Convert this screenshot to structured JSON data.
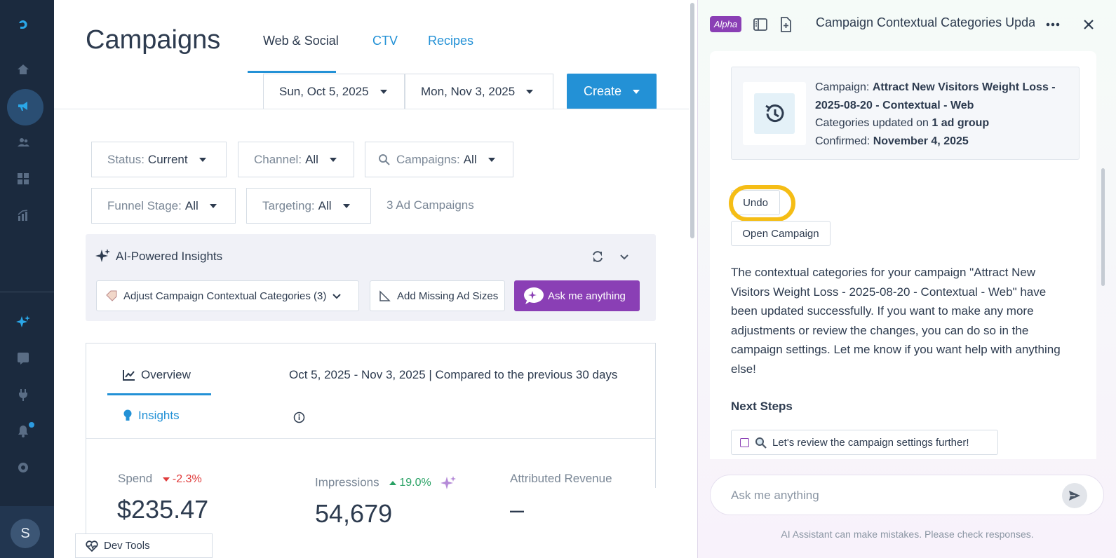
{
  "sidebar": {
    "avatar_initial": "S",
    "icons": [
      "logo-icon",
      "home-icon",
      "megaphone-icon",
      "audience-icon",
      "grid-icon",
      "chart-icon",
      "sparkle-icon",
      "help-icon",
      "plug-icon",
      "bell-icon",
      "gear-icon"
    ]
  },
  "header": {
    "title": "Campaigns",
    "tabs": [
      {
        "label": "Web & Social"
      },
      {
        "label": "CTV"
      },
      {
        "label": "Recipes"
      }
    ],
    "start_date": "Sun, Oct 5, 2025",
    "end_date": "Mon, Nov 3, 2025",
    "create_label": "Create"
  },
  "filters": {
    "status": {
      "label": "Status:",
      "value": "Current"
    },
    "channel": {
      "label": "Channel:",
      "value": "All"
    },
    "campaigns": {
      "label": "Campaigns:",
      "value": "All"
    },
    "funnel": {
      "label": "Funnel Stage:",
      "value": "All"
    },
    "targeting": {
      "label": "Targeting:",
      "value": "All"
    },
    "count_text": "3 Ad Campaigns"
  },
  "insights": {
    "title": "AI-Powered Insights",
    "chip1": "Adjust Campaign Contextual Categories (3)",
    "chip2": "Add Missing Ad Sizes",
    "ask_label": "Ask me anything"
  },
  "overview": {
    "tab_overview": "Overview",
    "tab_insights": "Insights",
    "range_text": "Oct 5, 2025 - Nov 3, 2025 | Compared to the previous 30 days",
    "spend": {
      "label": "Spend",
      "delta": "-2.3%",
      "value": "$235.47"
    },
    "impressions": {
      "label": "Impressions",
      "delta": "19.0%",
      "value": "54,679"
    },
    "revenue": {
      "label": "Attributed Revenue",
      "value": "–"
    }
  },
  "devtools": {
    "label": "Dev Tools"
  },
  "assistant": {
    "badge": "Alpha",
    "title": "Campaign Contextual Categories Update",
    "card": {
      "campaign_label": "Campaign:",
      "campaign_name": "Attract New Visitors Weight Loss - 2025-08-20 - Contextual - Web",
      "updated_label": "Categories updated on",
      "updated_value": "1 ad group",
      "confirmed_label": "Confirmed:",
      "confirmed_value": "November 4, 2025"
    },
    "undo_label": "Undo",
    "open_label": "Open Campaign",
    "message": "The contextual categories for your campaign \"Attract New Visitors Weight Loss - 2025-08-20 - Contextual - Web\" have been updated successfully. If you want to make any more adjustments or review the changes, you can do so in the campaign settings. Let me know if you want help with anything else!",
    "next_steps_title": "Next Steps",
    "step1": "Let's review the campaign settings further!",
    "input_placeholder": "Ask me anything",
    "disclaimer": "AI Assistant can make mistakes. Please check responses."
  },
  "colors": {
    "sidebar": "#1b2a3e",
    "accent": "#2391d6",
    "purple": "#8a3fb5",
    "highlight": "#f5bd15",
    "negative": "#e03b3b",
    "positive": "#28a164"
  }
}
